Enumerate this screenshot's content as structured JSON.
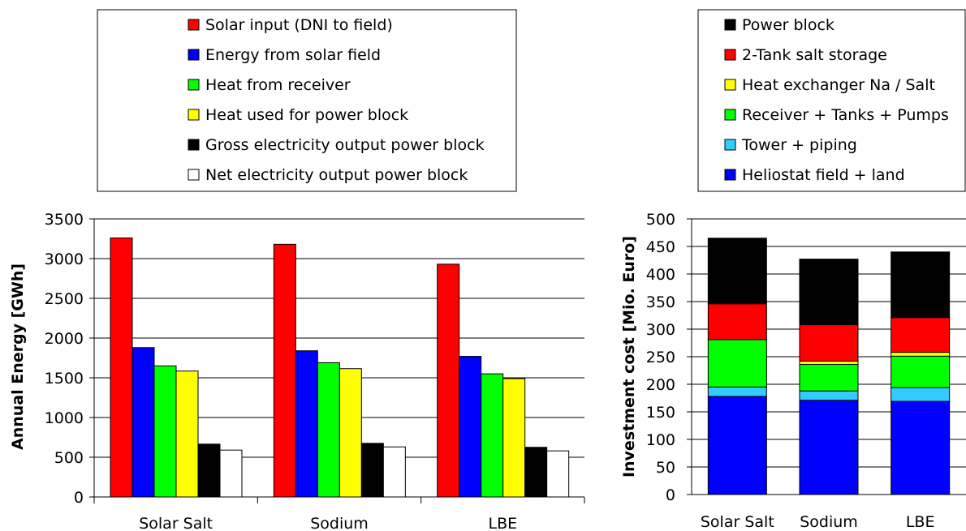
{
  "charts": [
    {
      "type": "bar",
      "ylabel": "Annual Energy [GWh]",
      "ylim": [
        0,
        3500
      ],
      "yticks": [
        0,
        500,
        1000,
        1500,
        2000,
        2500,
        3000,
        3500
      ],
      "categories": [
        "Solar Salt",
        "Sodium",
        "LBE"
      ],
      "grid": true,
      "legend": "top",
      "series": [
        {
          "name": "Solar input (DNI to field)",
          "color": "#ff0000",
          "values": [
            3260,
            3180,
            2930
          ]
        },
        {
          "name": "Energy from solar field",
          "color": "#0000ff",
          "values": [
            1880,
            1840,
            1770
          ]
        },
        {
          "name": "Heat from receiver",
          "color": "#00ff00",
          "values": [
            1650,
            1690,
            1550
          ]
        },
        {
          "name": "Heat used for power block",
          "color": "#ffff00",
          "values": [
            1585,
            1615,
            1490
          ]
        },
        {
          "name": "Gross electricity output power block",
          "color": "#000000",
          "values": [
            665,
            675,
            625
          ]
        },
        {
          "name": "Net electricity output power block",
          "color": "#ffffff",
          "values": [
            590,
            630,
            580
          ]
        }
      ]
    },
    {
      "type": "stacked-bar",
      "ylabel": "Investment cost [Mio. Euro]",
      "ylim": [
        0,
        500
      ],
      "yticks": [
        0,
        50,
        100,
        150,
        200,
        250,
        300,
        350,
        400,
        450,
        500
      ],
      "categories": [
        "Solar Salt",
        "Sodium",
        "LBE"
      ],
      "grid": true,
      "legend": "top",
      "series": [
        {
          "name": "Heliostat field + land",
          "color": "#0000ff",
          "values": [
            178,
            171,
            169
          ]
        },
        {
          "name": "Tower + piping",
          "color": "#33ccff",
          "values": [
            17,
            17,
            25
          ]
        },
        {
          "name": "Receiver + Tanks + Pumps",
          "color": "#00ff00",
          "values": [
            86,
            48,
            57
          ]
        },
        {
          "name": "Heat exchanger Na / Salt",
          "color": "#ffff00",
          "values": [
            0,
            6,
            7
          ]
        },
        {
          "name": "2-Tank salt storage",
          "color": "#ff0000",
          "values": [
            65,
            66,
            63
          ]
        },
        {
          "name": "Power block",
          "color": "#000000",
          "values": [
            119,
            119,
            119
          ]
        }
      ],
      "legend_order": [
        "Power block",
        "2-Tank salt storage",
        "Heat exchanger Na / Salt",
        "Receiver + Tanks + Pumps",
        "Tower + piping",
        "Heliostat field + land"
      ]
    }
  ]
}
